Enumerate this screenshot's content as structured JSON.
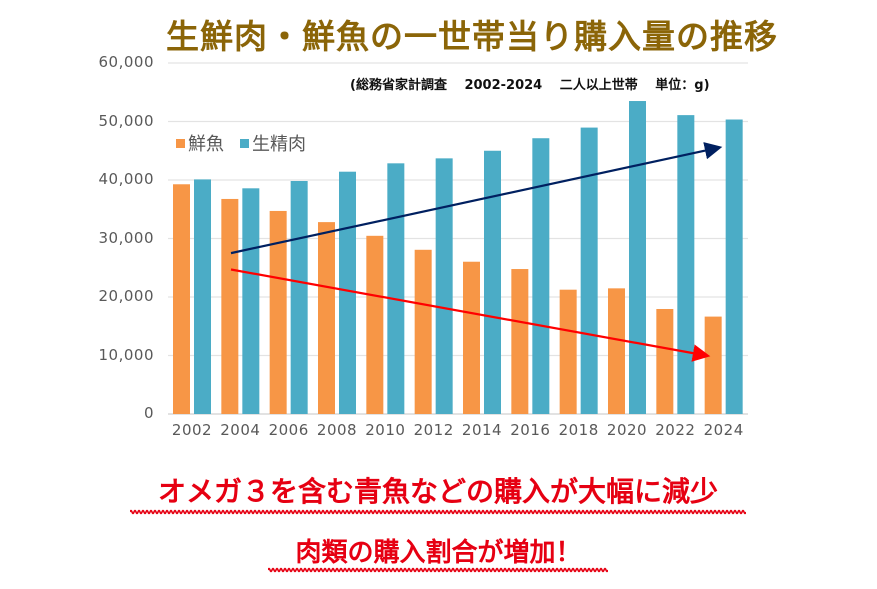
{
  "title": "生鮮肉・鮮魚の一世帯当り購入量の推移",
  "source_note": "(総務省家計調査　 2002-2024　 二人以上世帯　 単位：g)",
  "legend": [
    {
      "label": "鮮魚",
      "color": "#f79646"
    },
    {
      "label": "生精肉",
      "color": "#4bacc6"
    }
  ],
  "captions": {
    "line1": "オメガ３を含む青魚などの購入が大幅に減少",
    "line2": "肉類の購入割合が増加！",
    "color": "#e60012"
  },
  "chart_data": {
    "type": "bar",
    "title": "生鮮肉・鮮魚の一世帯当り購入量の推移",
    "subtitle": "(総務省家計調査 2002-2024 二人以上世帯 単位：g)",
    "xlabel": "",
    "ylabel": "",
    "ylim": [
      0,
      60000
    ],
    "yticks": [
      "0",
      "10,000",
      "20,000",
      "30,000",
      "40,000",
      "50,000",
      "60,000"
    ],
    "grid": true,
    "legend_position": "top-left",
    "categories": [
      "2002",
      "2004",
      "2006",
      "2008",
      "2010",
      "2012",
      "2014",
      "2016",
      "2018",
      "2020",
      "2022",
      "2024"
    ],
    "series": [
      {
        "name": "鮮魚",
        "color": "#f79646",
        "values": [
          39270,
          36760,
          34710,
          32800,
          30460,
          28070,
          26030,
          24780,
          21250,
          21480,
          17950,
          16650
        ]
      },
      {
        "name": "生精肉",
        "color": "#4bacc6",
        "values": [
          40100,
          38580,
          39830,
          41420,
          42850,
          43700,
          45000,
          47140,
          48960,
          53500,
          51090,
          50340
        ]
      }
    ],
    "annotations": [
      {
        "type": "arrow",
        "color": "#002060",
        "meaning": "生精肉 increasing trend",
        "from": [
          "2004",
          27500
        ],
        "to": [
          "2024",
          45500
        ]
      },
      {
        "type": "arrow",
        "color": "#ff0000",
        "meaning": "鮮魚 decreasing trend",
        "from": [
          "2004",
          24700
        ],
        "to": [
          "2024",
          10000
        ]
      }
    ]
  }
}
